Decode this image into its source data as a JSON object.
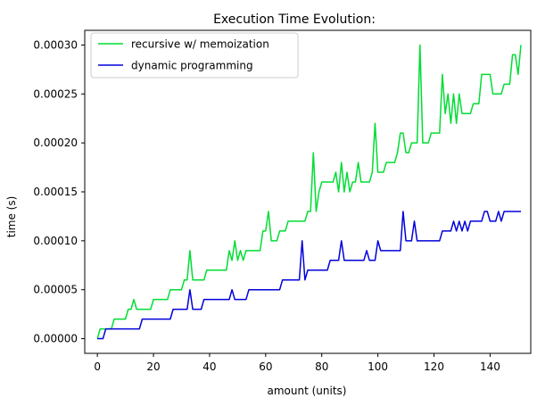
{
  "chart_data": {
    "type": "line",
    "title": "Execution Time Evolution:",
    "xlabel": "amount (units)",
    "ylabel": "time (s)",
    "xlim": [
      -4.5,
      154.5
    ],
    "ylim": [
      -1.5e-05,
      0.000315
    ],
    "x_ticks": [
      0,
      20,
      40,
      60,
      80,
      100,
      120,
      140
    ],
    "y_ticks": [
      0.0,
      5e-05,
      0.0001,
      0.00015,
      0.0002,
      0.00025,
      0.0003
    ],
    "x_tick_labels": [
      "0",
      "20",
      "40",
      "60",
      "80",
      "100",
      "120",
      "140"
    ],
    "y_tick_labels": [
      "0.00000",
      "0.00005",
      "0.00010",
      "0.00015",
      "0.00020",
      "0.00025",
      "0.00030"
    ],
    "grid": false,
    "legend_position": "upper-left",
    "series": [
      {
        "name": "recursive w/ memoization",
        "color": "#00dd33",
        "values": [
          0,
          1,
          1,
          1,
          1,
          1,
          2,
          2,
          2,
          2,
          2,
          3,
          3,
          4,
          3,
          3,
          3,
          3,
          3,
          3,
          4,
          4,
          4,
          4,
          4,
          4,
          5,
          5,
          5,
          5,
          5,
          6,
          6,
          9,
          6,
          6,
          6,
          6,
          6,
          7,
          7,
          7,
          7,
          7,
          7,
          7,
          7,
          9,
          8,
          10,
          8,
          9,
          8,
          9,
          9,
          9,
          9,
          9,
          9,
          11,
          11,
          13,
          10,
          10,
          10,
          11,
          11,
          11,
          12,
          12,
          12,
          12,
          12,
          12,
          12,
          13,
          13,
          19,
          13,
          15,
          16,
          16,
          16,
          16,
          16,
          17,
          15,
          18,
          15,
          17,
          15,
          16,
          16,
          18,
          16,
          16,
          16,
          16,
          17,
          22,
          17,
          17,
          17,
          18,
          18,
          18,
          18,
          19,
          21,
          21,
          19,
          19,
          20,
          20,
          20,
          30,
          20,
          20,
          20,
          21,
          21,
          21,
          21,
          27,
          23,
          25,
          22,
          25,
          22,
          25,
          23,
          23,
          23,
          23,
          24,
          24,
          24,
          27,
          27,
          27,
          27,
          25,
          25,
          25,
          25,
          26,
          26,
          26,
          29,
          29,
          27,
          30
        ]
      },
      {
        "name": "dynamic programming",
        "color": "#0000dd",
        "values": [
          0,
          0,
          0,
          1,
          1,
          1,
          1,
          1,
          1,
          1,
          1,
          1,
          1,
          1,
          1,
          1,
          2,
          2,
          2,
          2,
          2,
          2,
          2,
          2,
          2,
          2,
          2,
          3,
          3,
          3,
          3,
          3,
          3,
          5,
          3,
          3,
          3,
          3,
          4,
          4,
          4,
          4,
          4,
          4,
          4,
          4,
          4,
          4,
          5,
          4,
          4,
          4,
          4,
          4,
          5,
          5,
          5,
          5,
          5,
          5,
          5,
          5,
          5,
          5,
          5,
          5,
          6,
          6,
          6,
          6,
          6,
          6,
          6,
          10,
          6,
          7,
          7,
          7,
          7,
          7,
          7,
          7,
          7,
          8,
          8,
          8,
          8,
          10,
          8,
          8,
          8,
          8,
          8,
          8,
          8,
          8,
          9,
          8,
          8,
          8,
          10,
          9,
          9,
          9,
          9,
          9,
          9,
          9,
          9,
          13,
          10,
          10,
          10,
          12,
          10,
          10,
          10,
          10,
          10,
          10,
          10,
          10,
          10,
          11,
          11,
          11,
          11,
          12,
          11,
          12,
          11,
          12,
          11,
          12,
          12,
          12,
          12,
          12,
          13,
          13,
          12,
          12,
          12,
          13,
          12,
          13,
          13,
          13,
          13,
          13,
          13,
          13
        ]
      }
    ],
    "value_unit": 1e-05
  }
}
